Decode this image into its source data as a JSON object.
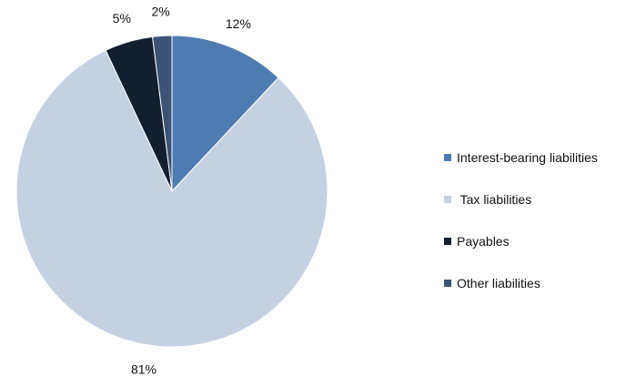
{
  "chart_data": {
    "type": "pie",
    "title": "",
    "categories": [
      "Interest-bearing liabilities",
      " Tax liabilities",
      "Payables",
      "Other liabilities"
    ],
    "values": [
      12,
      81,
      5,
      2
    ],
    "data_labels": [
      "12%",
      "81%",
      "5%",
      "2%"
    ],
    "colors": [
      "#4f7bb3",
      "#c5d1e3",
      "#131f30",
      "#3b5375"
    ],
    "legend_position": "right",
    "start_angle": "12 o'clock",
    "direction": "clockwise"
  }
}
